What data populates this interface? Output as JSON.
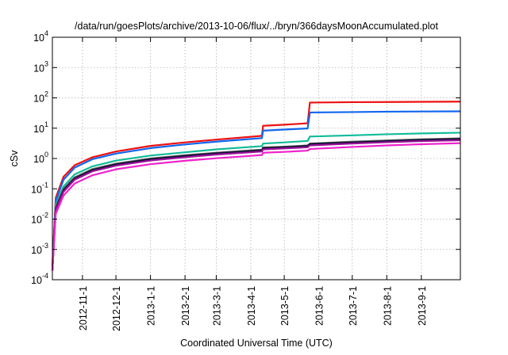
{
  "chart_data": {
    "type": "line",
    "title": "/data/run/goesPlots/archive/2013-10-06/flux/../bryn/366daysMoonAccumulated.plot",
    "xlabel": "Coordinated Universal Time (UTC)",
    "ylabel": "cSv",
    "y_scale": "log",
    "ylim_exponents": [
      -4,
      4
    ],
    "xlim": [
      "2012-10-05",
      "2013-10-06"
    ],
    "grid": true,
    "legend": "none",
    "x_ticks": [
      "2012-11-1",
      "2012-12-1",
      "2013-1-1",
      "2013-2-1",
      "2013-3-1",
      "2013-4-1",
      "2013-5-1",
      "2013-6-1",
      "2013-7-1",
      "2013-8-1",
      "2013-9-1"
    ],
    "y_ticks": [
      {
        "base": "10",
        "exp": "4"
      },
      {
        "base": "10",
        "exp": "3"
      },
      {
        "base": "10",
        "exp": "2"
      },
      {
        "base": "10",
        "exp": "1"
      },
      {
        "base": "10",
        "exp": "0"
      },
      {
        "base": "10",
        "exp": "-1"
      },
      {
        "base": "10",
        "exp": "-2"
      },
      {
        "base": "10",
        "exp": "-3"
      },
      {
        "base": "10",
        "exp": "-4"
      }
    ],
    "series": [
      {
        "color": "#ee1111",
        "points": [
          [
            "2012-10-05",
            0.0003
          ],
          [
            "2012-10-08",
            0.05
          ],
          [
            "2012-10-15",
            0.25
          ],
          [
            "2012-10-25",
            0.6
          ],
          [
            "2012-11-10",
            1.1
          ],
          [
            "2012-12-01",
            1.7
          ],
          [
            "2013-01-01",
            2.6
          ],
          [
            "2013-02-01",
            3.4
          ],
          [
            "2013-03-01",
            4.2
          ],
          [
            "2013-04-01",
            5.2
          ],
          [
            "2013-04-11",
            5.6
          ],
          [
            "2013-04-12",
            12.0
          ],
          [
            "2013-05-01",
            13.0
          ],
          [
            "2013-05-22",
            14.5
          ],
          [
            "2013-05-24",
            70
          ],
          [
            "2013-07-01",
            72
          ],
          [
            "2013-08-01",
            73
          ],
          [
            "2013-09-01",
            74
          ],
          [
            "2013-10-06",
            75
          ]
        ]
      },
      {
        "color": "#1166ee",
        "points": [
          [
            "2012-10-05",
            0.0002
          ],
          [
            "2012-10-08",
            0.04
          ],
          [
            "2012-10-15",
            0.2
          ],
          [
            "2012-10-25",
            0.5
          ],
          [
            "2012-11-10",
            0.95
          ],
          [
            "2012-12-01",
            1.45
          ],
          [
            "2013-01-01",
            2.2
          ],
          [
            "2013-02-01",
            2.9
          ],
          [
            "2013-03-01",
            3.6
          ],
          [
            "2013-04-01",
            4.4
          ],
          [
            "2013-04-11",
            4.7
          ],
          [
            "2013-04-12",
            8.3
          ],
          [
            "2013-05-01",
            9.0
          ],
          [
            "2013-05-22",
            9.8
          ],
          [
            "2013-05-24",
            33
          ],
          [
            "2013-07-01",
            34
          ],
          [
            "2013-08-01",
            35
          ],
          [
            "2013-09-01",
            35.5
          ],
          [
            "2013-10-06",
            36
          ]
        ]
      },
      {
        "color": "#11bb99",
        "points": [
          [
            "2012-10-05",
            0.0002
          ],
          [
            "2012-10-08",
            0.03
          ],
          [
            "2012-10-15",
            0.12
          ],
          [
            "2012-10-25",
            0.3
          ],
          [
            "2012-11-10",
            0.55
          ],
          [
            "2012-12-01",
            0.85
          ],
          [
            "2013-01-01",
            1.25
          ],
          [
            "2013-02-01",
            1.6
          ],
          [
            "2013-03-01",
            2.0
          ],
          [
            "2013-04-01",
            2.4
          ],
          [
            "2013-04-11",
            2.55
          ],
          [
            "2013-04-12",
            3.1
          ],
          [
            "2013-05-01",
            3.4
          ],
          [
            "2013-05-22",
            3.8
          ],
          [
            "2013-05-24",
            5.3
          ],
          [
            "2013-07-01",
            5.8
          ],
          [
            "2013-08-01",
            6.3
          ],
          [
            "2013-09-01",
            6.7
          ],
          [
            "2013-10-06",
            7.1
          ]
        ]
      },
      {
        "color": "#666666",
        "points": [
          [
            "2012-10-05",
            0.0002
          ],
          [
            "2012-10-08",
            0.025
          ],
          [
            "2012-10-15",
            0.1
          ],
          [
            "2012-10-25",
            0.24
          ],
          [
            "2012-11-10",
            0.45
          ],
          [
            "2012-12-01",
            0.68
          ],
          [
            "2013-01-01",
            1.0
          ],
          [
            "2013-02-01",
            1.28
          ],
          [
            "2013-03-01",
            1.55
          ],
          [
            "2013-04-01",
            1.85
          ],
          [
            "2013-04-11",
            1.95
          ],
          [
            "2013-04-12",
            2.3
          ],
          [
            "2013-05-01",
            2.45
          ],
          [
            "2013-05-22",
            2.7
          ],
          [
            "2013-05-24",
            3.1
          ],
          [
            "2013-07-01",
            3.6
          ],
          [
            "2013-08-01",
            3.95
          ],
          [
            "2013-09-01",
            4.3
          ],
          [
            "2013-10-06",
            4.6
          ]
        ]
      },
      {
        "color": "#111133",
        "points": [
          [
            "2012-10-05",
            0.0002
          ],
          [
            "2012-10-08",
            0.022
          ],
          [
            "2012-10-15",
            0.09
          ],
          [
            "2012-10-25",
            0.22
          ],
          [
            "2012-11-10",
            0.42
          ],
          [
            "2012-12-01",
            0.64
          ],
          [
            "2013-01-01",
            0.95
          ],
          [
            "2013-02-01",
            1.22
          ],
          [
            "2013-03-01",
            1.48
          ],
          [
            "2013-04-01",
            1.75
          ],
          [
            "2013-04-11",
            1.85
          ],
          [
            "2013-04-12",
            2.2
          ],
          [
            "2013-05-01",
            2.35
          ],
          [
            "2013-05-22",
            2.6
          ],
          [
            "2013-05-24",
            3.0
          ],
          [
            "2013-07-01",
            3.4
          ],
          [
            "2013-08-01",
            3.75
          ],
          [
            "2013-09-01",
            4.1
          ],
          [
            "2013-10-06",
            4.4
          ]
        ]
      },
      {
        "color": "#991199",
        "points": [
          [
            "2012-10-05",
            0.0002
          ],
          [
            "2012-10-08",
            0.02
          ],
          [
            "2012-10-15",
            0.08
          ],
          [
            "2012-10-25",
            0.2
          ],
          [
            "2012-11-10",
            0.38
          ],
          [
            "2012-12-01",
            0.58
          ],
          [
            "2013-01-01",
            0.86
          ],
          [
            "2013-02-01",
            1.1
          ],
          [
            "2013-03-01",
            1.35
          ],
          [
            "2013-04-01",
            1.6
          ],
          [
            "2013-04-11",
            1.7
          ],
          [
            "2013-04-12",
            2.0
          ],
          [
            "2013-05-01",
            2.15
          ],
          [
            "2013-05-22",
            2.35
          ],
          [
            "2013-05-24",
            2.7
          ],
          [
            "2013-07-01",
            3.1
          ],
          [
            "2013-08-01",
            3.45
          ],
          [
            "2013-09-01",
            3.75
          ],
          [
            "2013-10-06",
            4.0
          ]
        ]
      },
      {
        "color": "#ee22cc",
        "points": [
          [
            "2012-10-05",
            0.0002
          ],
          [
            "2012-10-08",
            0.015
          ],
          [
            "2012-10-15",
            0.06
          ],
          [
            "2012-10-25",
            0.15
          ],
          [
            "2012-11-10",
            0.28
          ],
          [
            "2012-12-01",
            0.44
          ],
          [
            "2013-01-01",
            0.65
          ],
          [
            "2013-02-01",
            0.84
          ],
          [
            "2013-03-01",
            1.02
          ],
          [
            "2013-04-01",
            1.22
          ],
          [
            "2013-04-11",
            1.3
          ],
          [
            "2013-04-12",
            1.55
          ],
          [
            "2013-05-01",
            1.65
          ],
          [
            "2013-05-22",
            1.82
          ],
          [
            "2013-05-24",
            2.05
          ],
          [
            "2013-07-01",
            2.4
          ],
          [
            "2013-08-01",
            2.7
          ],
          [
            "2013-09-01",
            2.95
          ],
          [
            "2013-10-06",
            3.2
          ]
        ]
      }
    ]
  }
}
